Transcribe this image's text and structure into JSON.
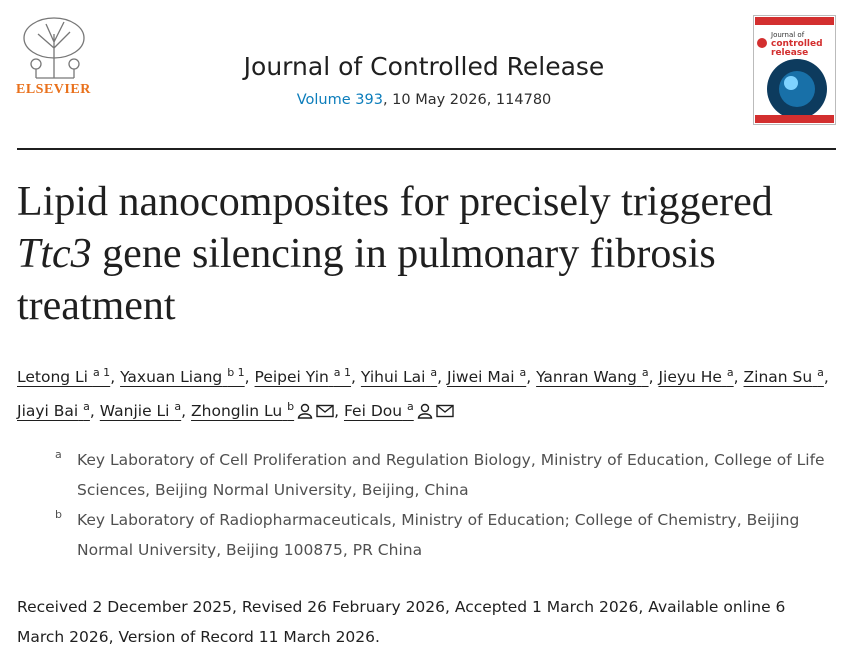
{
  "header": {
    "publisher": "ELSEVIER",
    "journal": "Journal of Controlled Release",
    "volume_link": "Volume 393",
    "issue": ", 10 May 2026, 114780",
    "cover": {
      "line1": "Journal of",
      "line2": "controlled",
      "line3": "release"
    }
  },
  "title": {
    "part1": "Lipid nanocomposites for precisely triggered ",
    "gene": "Ttc3",
    "part2": " gene silencing in pulmonary fibrosis treatment"
  },
  "authors_separator": ",",
  "authors": [
    {
      "name": "Letong Li",
      "sup": "a 1"
    },
    {
      "name": "Yaxuan Liang",
      "sup": "b 1"
    },
    {
      "name": "Peipei Yin",
      "sup": "a 1"
    },
    {
      "name": "Yihui Lai",
      "sup": "a"
    },
    {
      "name": "Jiwei Mai",
      "sup": "a"
    },
    {
      "name": "Yanran Wang",
      "sup": "a"
    },
    {
      "name": "Jieyu He",
      "sup": "a"
    },
    {
      "name": "Zinan Su",
      "sup": "a"
    },
    {
      "name": "Jiayi Bai",
      "sup": "a"
    },
    {
      "name": "Wanjie Li",
      "sup": "a"
    },
    {
      "name": "Zhonglin Lu",
      "sup": "b",
      "corresponding": true
    },
    {
      "name": "Fei Dou",
      "sup": "a",
      "corresponding": true
    }
  ],
  "affiliations": [
    {
      "label": "a",
      "text": "Key Laboratory of Cell Proliferation and Regulation Biology, Ministry of Education, College of Life Sciences, Beijing Normal University, Beijing, China"
    },
    {
      "label": "b",
      "text": "Key Laboratory of Radiopharmaceuticals, Ministry of Education; College of Chemistry, Beijing Normal University, Beijing 100875, PR China"
    }
  ],
  "history": "Received 2 December 2025, Revised 26 February 2026, Accepted 1 March 2026, Available online 6 March 2026, Version of Record 11 March 2026."
}
